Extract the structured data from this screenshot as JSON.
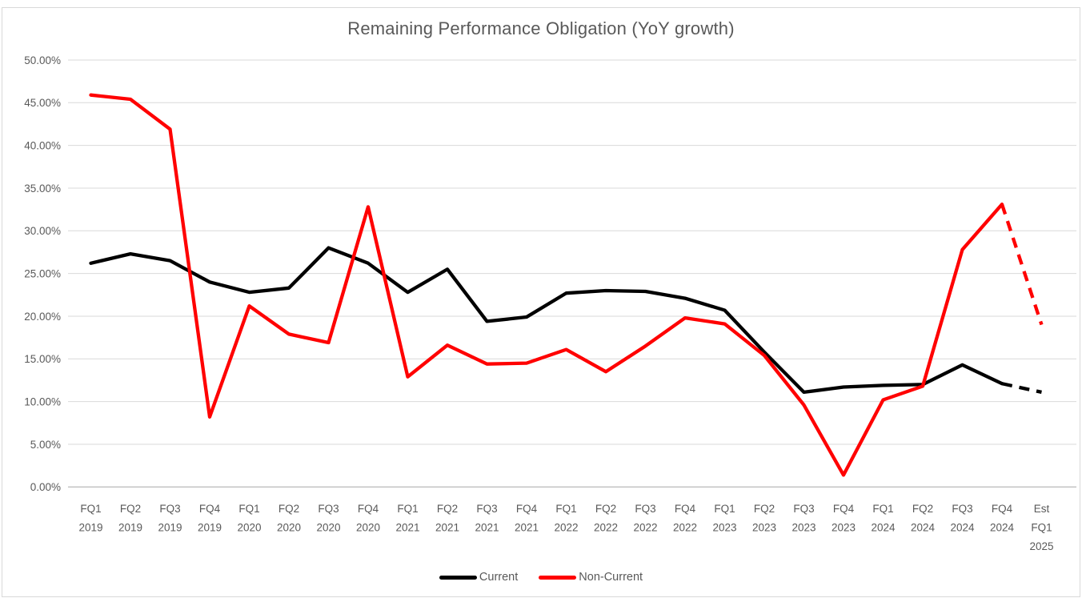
{
  "chart_data": {
    "type": "line",
    "title": "Remaining Performance Obligation (YoY growth)",
    "categories": [
      "FQ1 2019",
      "FQ2 2019",
      "FQ3 2019",
      "FQ4 2019",
      "FQ1 2020",
      "FQ2 2020",
      "FQ3 2020",
      "FQ4 2020",
      "FQ1 2021",
      "FQ2 2021",
      "FQ3 2021",
      "FQ4 2021",
      "FQ1 2022",
      "FQ2 2022",
      "FQ3 2022",
      "FQ4 2022",
      "FQ1 2023",
      "FQ2 2023",
      "FQ3 2023",
      "FQ4 2023",
      "FQ1 2024",
      "FQ2 2024",
      "FQ3 2024",
      "FQ4 2024",
      "Est FQ1 2025"
    ],
    "category_label_lines": [
      [
        "FQ1",
        "2019"
      ],
      [
        "FQ2",
        "2019"
      ],
      [
        "FQ3",
        "2019"
      ],
      [
        "FQ4",
        "2019"
      ],
      [
        "FQ1",
        "2020"
      ],
      [
        "FQ2",
        "2020"
      ],
      [
        "FQ3",
        "2020"
      ],
      [
        "FQ4",
        "2020"
      ],
      [
        "FQ1",
        "2021"
      ],
      [
        "FQ2",
        "2021"
      ],
      [
        "FQ3",
        "2021"
      ],
      [
        "FQ4",
        "2021"
      ],
      [
        "FQ1",
        "2022"
      ],
      [
        "FQ2",
        "2022"
      ],
      [
        "FQ3",
        "2022"
      ],
      [
        "FQ4",
        "2022"
      ],
      [
        "FQ1",
        "2023"
      ],
      [
        "FQ2",
        "2023"
      ],
      [
        "FQ3",
        "2023"
      ],
      [
        "FQ4",
        "2023"
      ],
      [
        "FQ1",
        "2024"
      ],
      [
        "FQ2",
        "2024"
      ],
      [
        "FQ3",
        "2024"
      ],
      [
        "FQ4",
        "2024"
      ],
      [
        "Est",
        "FQ1",
        "2025"
      ]
    ],
    "series": [
      {
        "name": "Current",
        "color": "#000000",
        "dashed_from_index": 23,
        "values": [
          26.2,
          27.3,
          26.5,
          24.0,
          22.8,
          23.3,
          28.0,
          26.2,
          22.8,
          25.5,
          19.4,
          19.9,
          22.7,
          23.0,
          22.9,
          22.1,
          20.7,
          15.8,
          11.1,
          11.7,
          11.9,
          12.0,
          14.3,
          12.1,
          11.1
        ]
      },
      {
        "name": "Non-Current",
        "color": "#ff0000",
        "dashed_from_index": 23,
        "values": [
          45.9,
          45.4,
          41.9,
          8.2,
          21.2,
          17.9,
          16.9,
          32.8,
          12.9,
          16.6,
          14.4,
          14.5,
          16.1,
          13.5,
          16.5,
          19.8,
          19.1,
          15.4,
          9.6,
          1.4,
          10.2,
          11.8,
          27.8,
          33.1,
          19.0
        ]
      }
    ],
    "ylim": [
      0,
      50
    ],
    "y_ticks": [
      {
        "value": 50,
        "label": "50.00%"
      },
      {
        "value": 45,
        "label": "45.00%"
      },
      {
        "value": 40,
        "label": "40.00%"
      },
      {
        "value": 35,
        "label": "35.00%"
      },
      {
        "value": 30,
        "label": "30.00%"
      },
      {
        "value": 25,
        "label": "25.00%"
      },
      {
        "value": 20,
        "label": "20.00%"
      },
      {
        "value": 15,
        "label": "15.00%"
      },
      {
        "value": 10,
        "label": "10.00%"
      },
      {
        "value": 5,
        "label": "5.00%"
      },
      {
        "value": 0,
        "label": "0.00%"
      }
    ],
    "grid": true,
    "legend_position": "bottom",
    "colors": {
      "gridline": "#d9d9d9",
      "axis_line": "#bfbfbf",
      "tick_text": "#595959",
      "title_text": "#595959",
      "background": "#ffffff",
      "frame_border": "#d9d9d9"
    }
  }
}
